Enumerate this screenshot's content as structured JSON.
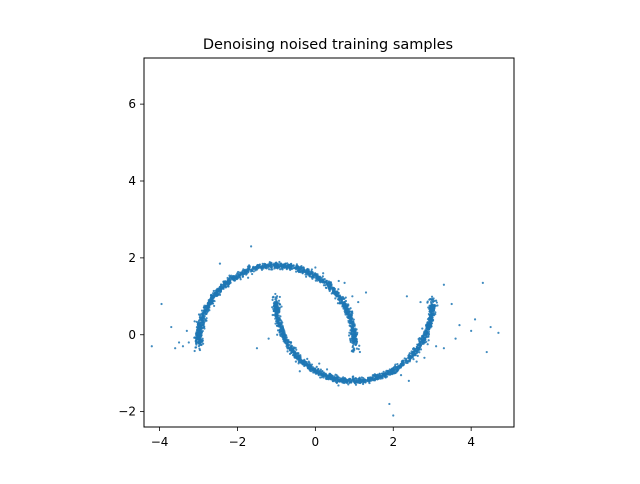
{
  "chart_data": {
    "type": "scatter",
    "title": "Denoising noised training samples",
    "xlabel": "",
    "ylabel": "",
    "xlim": [
      -4.4,
      5.1
    ],
    "ylim": [
      -2.4,
      7.2
    ],
    "xticks": [
      -4,
      -2,
      0,
      2,
      4
    ],
    "yticks": [
      -2,
      0,
      2,
      4,
      6
    ],
    "xtick_labels": [
      "−4",
      "−2",
      "0",
      "2",
      "4"
    ],
    "ytick_labels": [
      "−2",
      "0",
      "2",
      "4",
      "6"
    ],
    "grid": false,
    "legend": "none",
    "marker_color": "#1f77b4",
    "series": [
      {
        "shape": "two interleaving half-circle arcs (two moons) with scattered outliers",
        "upper_arc": {
          "center": [
            -1.0,
            -0.2
          ],
          "radius": 2.0,
          "angle_range_deg": [
            0,
            180
          ]
        },
        "lower_arc": {
          "center": [
            1.0,
            0.8
          ],
          "radius": 2.0,
          "angle_range_deg": [
            180,
            360
          ]
        },
        "outliers": [
          [
            -3.95,
            0.8
          ],
          [
            -3.6,
            -0.35
          ],
          [
            -3.5,
            -0.2
          ],
          [
            -3.3,
            0.1
          ],
          [
            -3.1,
            0.35
          ],
          [
            -3.7,
            0.2
          ],
          [
            -4.2,
            -0.3
          ],
          [
            -3.4,
            -0.3
          ],
          [
            -3.25,
            -0.2
          ],
          [
            -2.6,
            0.75
          ],
          [
            -2.45,
            1.85
          ],
          [
            -1.65,
            2.3
          ],
          [
            -1.5,
            -0.35
          ],
          [
            -1.2,
            -0.1
          ],
          [
            0.0,
            1.75
          ],
          [
            0.2,
            1.6
          ],
          [
            0.6,
            1.4
          ],
          [
            0.75,
            1.35
          ],
          [
            0.95,
            1.0
          ],
          [
            1.1,
            0.85
          ],
          [
            1.3,
            1.1
          ],
          [
            -0.4,
            -0.95
          ],
          [
            -0.5,
            -0.7
          ],
          [
            0.1,
            -0.75
          ],
          [
            0.3,
            -0.9
          ],
          [
            1.9,
            -1.8
          ],
          [
            2.0,
            -2.1
          ],
          [
            2.2,
            -1.05
          ],
          [
            2.4,
            -1.2
          ],
          [
            2.6,
            -0.7
          ],
          [
            2.8,
            -0.6
          ],
          [
            2.35,
            1.0
          ],
          [
            2.7,
            0.85
          ],
          [
            3.3,
            1.3
          ],
          [
            3.5,
            0.8
          ],
          [
            3.7,
            0.25
          ],
          [
            3.6,
            -0.1
          ],
          [
            4.0,
            0.1
          ],
          [
            4.1,
            0.4
          ],
          [
            4.3,
            1.35
          ],
          [
            4.5,
            0.2
          ],
          [
            4.7,
            0.05
          ],
          [
            4.4,
            -0.45
          ],
          [
            3.1,
            -0.3
          ],
          [
            3.3,
            -0.35
          ]
        ]
      }
    ]
  }
}
